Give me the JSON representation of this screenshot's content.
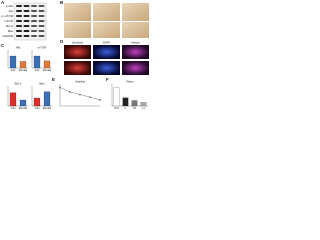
{
  "panel_labels": [
    "A",
    "B",
    "C",
    "D",
    "E",
    "F"
  ],
  "blot": {
    "rows": [
      "p-Akt",
      "Akt",
      "p-mTOR",
      "mTOR",
      "Bcl-2",
      "Bax",
      "GAPDH"
    ]
  },
  "images": {
    "columns": [
      "Vimentin",
      "DAPI",
      "Merge"
    ]
  },
  "charts": [
    {
      "type": "bar",
      "title": "Akt",
      "categories": [
        "Ctrl",
        "Model"
      ],
      "values": [
        1.0,
        0.55
      ],
      "colors": [
        "#3b6fb6",
        "#e07b39"
      ],
      "ylim": [
        0,
        1.5
      ]
    },
    {
      "type": "bar",
      "title": "mTOR",
      "categories": [
        "Ctrl",
        "Model"
      ],
      "values": [
        1.0,
        0.6
      ],
      "colors": [
        "#3b6fb6",
        "#e07b39"
      ],
      "ylim": [
        0,
        1.5
      ]
    },
    {
      "type": "bar",
      "title": "Bcl-2",
      "categories": [
        "Ctrl",
        "Model"
      ],
      "values": [
        1.0,
        0.45
      ],
      "colors": [
        "#d9302c",
        "#3b6fb6"
      ],
      "ylim": [
        0,
        1.5
      ]
    },
    {
      "type": "bar",
      "title": "Bax",
      "categories": [
        "Ctrl",
        "Model"
      ],
      "values": [
        1.0,
        1.8
      ],
      "colors": [
        "#d9302c",
        "#3b6fb6"
      ],
      "ylim": [
        0,
        2.5
      ]
    },
    {
      "type": "line",
      "title": "Viability",
      "x": [
        0,
        1,
        2,
        3,
        4
      ],
      "values": [
        2.1,
        1.6,
        1.3,
        1.0,
        0.7
      ],
      "color": "#555555",
      "xlim": [
        0,
        4
      ],
      "ylim": [
        0,
        2.5
      ]
    },
    {
      "type": "bar",
      "title": "Ratio",
      "categories": [
        "Ctrl",
        "L",
        "M",
        "H"
      ],
      "values": [
        1.0,
        0.45,
        0.3,
        0.2
      ],
      "colors": [
        "#ffffff",
        "#222222",
        "#777777",
        "#aaaaaa"
      ],
      "ylim": [
        0,
        1.2
      ]
    }
  ]
}
